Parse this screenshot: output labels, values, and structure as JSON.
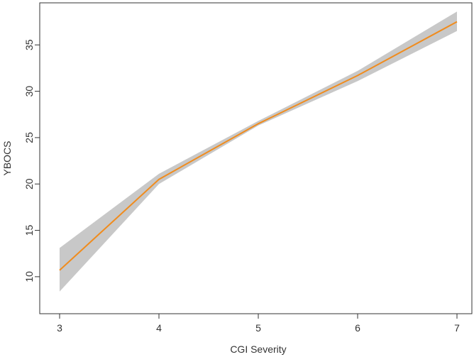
{
  "chart_data": {
    "type": "line",
    "title": "",
    "xlabel": "CGI Severity",
    "ylabel": "YBOCS",
    "x": [
      3,
      4,
      5,
      6,
      7
    ],
    "xticks": [
      "3",
      "4",
      "5",
      "6",
      "7"
    ],
    "yticks": [
      "10",
      "15",
      "20",
      "25",
      "30",
      "35"
    ],
    "xlim": [
      3,
      7
    ],
    "ylim": [
      8,
      39
    ],
    "grid": false,
    "series": [
      {
        "values": [
          10.7,
          20.5,
          26.5,
          31.7,
          37.5
        ],
        "lower": [
          8.4,
          20.0,
          26.3,
          31.1,
          36.5
        ],
        "upper": [
          13.1,
          21.1,
          26.8,
          32.2,
          38.6
        ],
        "line_color": "#f08c1e",
        "band_color": "#c8c8c8"
      }
    ]
  }
}
